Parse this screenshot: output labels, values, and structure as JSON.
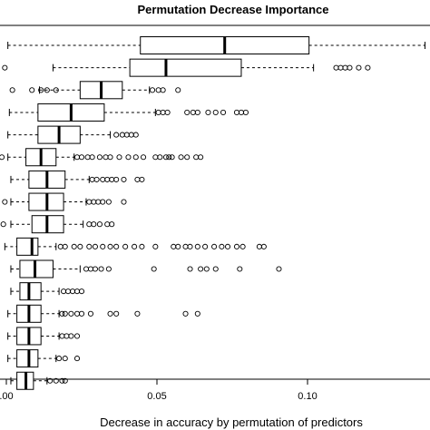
{
  "chart_data": {
    "type": "box",
    "title": "Permutation Decrease Importance",
    "xlabel": "Decrease in accuracy by permutation of predictors",
    "ylabel": "",
    "orientation": "horizontal",
    "xlim": [
      0.0,
      0.14
    ],
    "xticks": [
      0.0,
      0.05,
      0.1
    ],
    "xtick_labels": [
      ".00",
      "0.05",
      "0.10"
    ],
    "grid": false,
    "series": [
      {
        "whisker_low": 0.0005,
        "q1": 0.0445,
        "median": 0.0725,
        "q3": 0.1005,
        "whisker_high": 0.139,
        "outliers": []
      },
      {
        "whisker_low": 0.0155,
        "q1": 0.041,
        "median": 0.053,
        "q3": 0.078,
        "whisker_high": 0.102,
        "outliers": [
          -0.0005,
          0.1095,
          0.111,
          0.1125,
          0.114,
          0.117,
          0.12
        ]
      },
      {
        "whisker_low": 0.011,
        "q1": 0.0245,
        "median": 0.0315,
        "q3": 0.0385,
        "whisker_high": 0.0475,
        "outliers": [
          0.002,
          0.0085,
          0.0115,
          0.0135,
          0.0165,
          0.0485,
          0.0505,
          0.052,
          0.057
        ]
      },
      {
        "whisker_low": 0.001,
        "q1": 0.0105,
        "median": 0.0215,
        "q3": 0.0325,
        "whisker_high": 0.0495,
        "outliers": [
          0.0505,
          0.052,
          0.0535,
          0.06,
          0.062,
          0.0635,
          0.067,
          0.0695,
          0.072,
          0.0765,
          0.078,
          0.0795
        ]
      },
      {
        "whisker_low": 0.0005,
        "q1": 0.0105,
        "median": 0.0175,
        "q3": 0.0245,
        "whisker_high": 0.0345,
        "outliers": [
          0.0365,
          0.0385,
          0.04,
          0.0415,
          0.043
        ]
      },
      {
        "whisker_low": 0.0005,
        "q1": 0.0065,
        "median": 0.0115,
        "q3": 0.0165,
        "whisker_high": 0.0225,
        "outliers": [
          -0.0015,
          0.0235,
          0.025,
          0.027,
          0.0285,
          0.031,
          0.033,
          0.0345,
          0.0375,
          0.0405,
          0.043,
          0.0455,
          0.0495,
          0.051,
          0.053,
          0.054,
          0.055,
          0.058,
          0.06,
          0.063,
          0.0645
        ]
      },
      {
        "whisker_low": 0.0015,
        "q1": 0.0075,
        "median": 0.0135,
        "q3": 0.0195,
        "whisker_high": 0.0275,
        "outliers": [
          0.0285,
          0.03,
          0.032,
          0.0335,
          0.035,
          0.0365,
          0.039,
          0.0435,
          0.045
        ]
      },
      {
        "whisker_low": 0.0015,
        "q1": 0.0075,
        "median": 0.0135,
        "q3": 0.019,
        "whisker_high": 0.0265,
        "outliers": [
          -0.0005,
          0.0275,
          0.029,
          0.0305,
          0.032,
          0.034,
          0.039
        ]
      },
      {
        "whisker_low": 0.0015,
        "q1": 0.0085,
        "median": 0.0135,
        "q3": 0.019,
        "whisker_high": 0.0255,
        "outliers": [
          -0.001,
          0.0275,
          0.029,
          0.031,
          0.0335,
          0.035
        ]
      },
      {
        "whisker_low": -0.0005,
        "q1": 0.0035,
        "median": 0.0085,
        "q3": 0.0105,
        "whisker_high": 0.0165,
        "outliers": [
          0.018,
          0.0195,
          0.0225,
          0.0245,
          0.0275,
          0.0295,
          0.032,
          0.0345,
          0.0365,
          0.0395,
          0.0425,
          0.045,
          0.0495,
          0.0555,
          0.057,
          0.0595,
          0.061,
          0.0635,
          0.066,
          0.069,
          0.0715,
          0.0735,
          0.0765,
          0.0785,
          0.084,
          0.0855
        ]
      },
      {
        "whisker_low": 0.0015,
        "q1": 0.0045,
        "median": 0.0095,
        "q3": 0.0155,
        "whisker_high": 0.0245,
        "outliers": [
          0.0265,
          0.028,
          0.0295,
          0.0315,
          0.034,
          0.049,
          0.061,
          0.0645,
          0.0665,
          0.0695,
          0.0775,
          0.0905
        ]
      },
      {
        "whisker_low": 0.0015,
        "q1": 0.0045,
        "median": 0.0075,
        "q3": 0.0115,
        "whisker_high": 0.0175,
        "outliers": [
          0.019,
          0.0205,
          0.022,
          0.0235,
          0.025
        ]
      },
      {
        "whisker_low": 0.0005,
        "q1": 0.0035,
        "median": 0.0075,
        "q3": 0.0115,
        "whisker_high": 0.0175,
        "outliers": [
          0.0185,
          0.0195,
          0.0215,
          0.0235,
          0.025,
          0.028,
          0.0345,
          0.0365,
          0.0435,
          0.0595,
          0.0635
        ]
      },
      {
        "whisker_low": 0.0005,
        "q1": 0.0035,
        "median": 0.0075,
        "q3": 0.0115,
        "whisker_high": 0.0175,
        "outliers": [
          0.0185,
          0.02,
          0.0215,
          0.0235
        ]
      },
      {
        "whisker_low": 0.0005,
        "q1": 0.0035,
        "median": 0.0075,
        "q3": 0.0105,
        "whisker_high": 0.0165,
        "outliers": [
          0.0175,
          0.0195,
          0.0235
        ]
      },
      {
        "whisker_low": 0.0015,
        "q1": 0.0035,
        "median": 0.0065,
        "q3": 0.009,
        "whisker_high": 0.0135,
        "outliers": [
          0.0145,
          0.0165,
          0.0185,
          0.0195
        ]
      }
    ]
  },
  "colors": {
    "box_fill": "#ffffff",
    "stroke": "#000000"
  }
}
